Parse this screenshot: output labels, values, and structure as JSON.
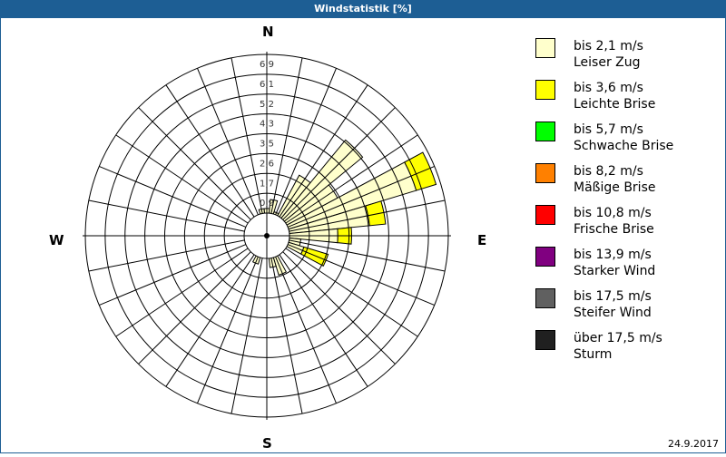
{
  "window": {
    "title": "Windstatistik [%]",
    "date": "24.9.2017"
  },
  "compass": {
    "north": "N",
    "east": "E",
    "south": "S",
    "west": "W"
  },
  "legend": [
    {
      "range": "bis 2,1 m/s",
      "name": "Leiser Zug",
      "color": "#ffffcc"
    },
    {
      "range": "bis 3,6 m/s",
      "name": "Leichte Brise",
      "color": "#ffff00"
    },
    {
      "range": "bis 5,7 m/s",
      "name": "Schwache Brise",
      "color": "#00ff00"
    },
    {
      "range": "bis 8,2 m/s",
      "name": "Mäßige Brise",
      "color": "#ff8000"
    },
    {
      "range": "bis 10,8 m/s",
      "name": "Frische Brise",
      "color": "#ff0000"
    },
    {
      "range": "bis 13,9 m/s",
      "name": "Starker Wind",
      "color": "#800080"
    },
    {
      "range": "bis 17,5 m/s",
      "name": "Steifer Wind",
      "color": "#606060"
    },
    {
      "range": "über 17,5 m/s",
      "name": "Sturm",
      "color": "#202020"
    }
  ],
  "chart_data": {
    "type": "wind-rose",
    "title": "Windstatistik [%]",
    "unit": "%",
    "ring_labels": [
      "0,9",
      "1,7",
      "2,6",
      "3,5",
      "4,3",
      "5,2",
      "6,1",
      "6,9"
    ],
    "rmax": 6.9,
    "sectors": 32,
    "sector_width_deg": 11.25,
    "series_names": [
      "bis 2,1 m/s",
      "bis 3,6 m/s"
    ],
    "bars": [
      {
        "dir_deg": 11.25,
        "values": [
          0.6,
          0.0
        ]
      },
      {
        "dir_deg": 22.5,
        "values": [
          0.1,
          0.0
        ]
      },
      {
        "dir_deg": 33.75,
        "values": [
          2.0,
          0.0
        ]
      },
      {
        "dir_deg": 45.0,
        "values": [
          4.4,
          0.0
        ]
      },
      {
        "dir_deg": 56.25,
        "values": [
          2.5,
          0.0
        ]
      },
      {
        "dir_deg": 67.5,
        "values": [
          5.8,
          0.9
        ]
      },
      {
        "dir_deg": 78.75,
        "values": [
          3.5,
          0.7
        ]
      },
      {
        "dir_deg": 90.0,
        "values": [
          2.1,
          0.6
        ]
      },
      {
        "dir_deg": 101.25,
        "values": [
          0.5,
          0.0
        ]
      },
      {
        "dir_deg": 112.5,
        "values": [
          0.7,
          1.1
        ]
      },
      {
        "dir_deg": 157.5,
        "values": [
          0.8,
          0.0
        ]
      },
      {
        "dir_deg": 168.75,
        "values": [
          0.4,
          0.0
        ]
      },
      {
        "dir_deg": 202.5,
        "values": [
          0.3,
          0.0
        ]
      },
      {
        "dir_deg": 348.75,
        "values": [
          0.2,
          0.0
        ]
      },
      {
        "dir_deg": 0.0,
        "values": [
          0.2,
          0.0
        ]
      }
    ],
    "inner_radius_px": 25,
    "grid": true
  }
}
